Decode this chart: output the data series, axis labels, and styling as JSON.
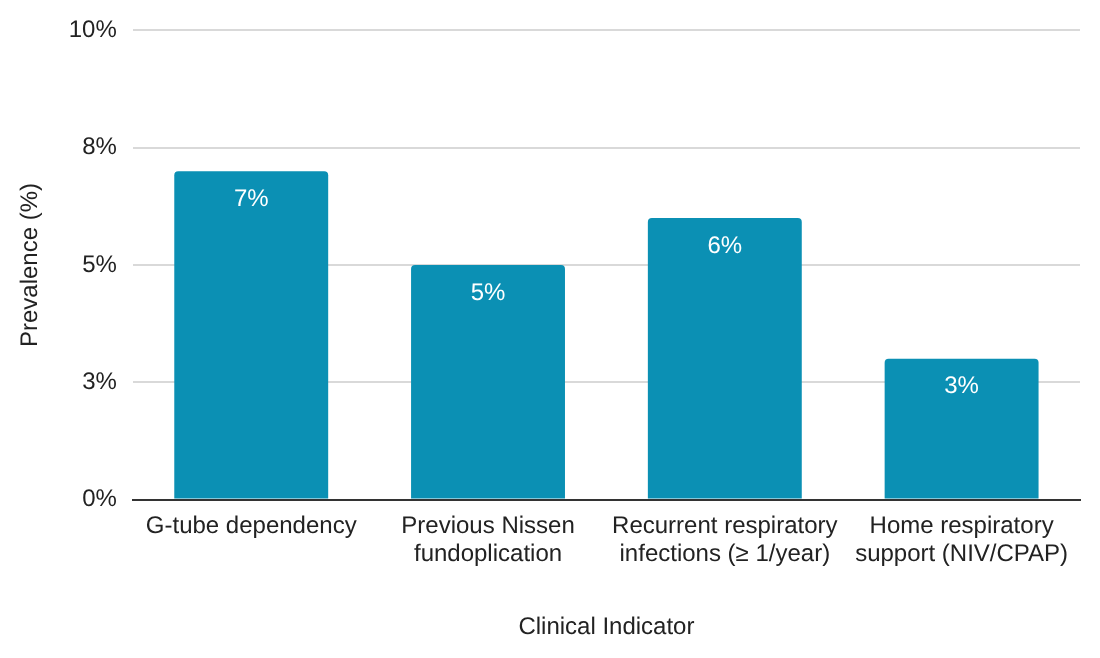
{
  "chart_data": {
    "type": "bar",
    "xlabel": "Clinical Indicator",
    "ylabel": "Prevalence (%)",
    "categories": [
      "G-tube dependency",
      "Previous Nissen fundoplication",
      "Recurrent respiratory infections (≥ 1/year)",
      "Home respiratory support (NIV/CPAP)"
    ],
    "values": [
      7,
      5,
      6,
      3
    ],
    "value_labels": [
      "7%",
      "5%",
      "6%",
      "3%"
    ],
    "color": "#0b90b4",
    "ylim": [
      0,
      10
    ],
    "yticks": [
      {
        "value": 0,
        "label": "0%"
      },
      {
        "value": 2.5,
        "label": "3%"
      },
      {
        "value": 5,
        "label": "5%"
      },
      {
        "value": 7.5,
        "label": "8%"
      },
      {
        "value": 10,
        "label": "10%"
      }
    ],
    "grid": "y",
    "legend": false
  }
}
